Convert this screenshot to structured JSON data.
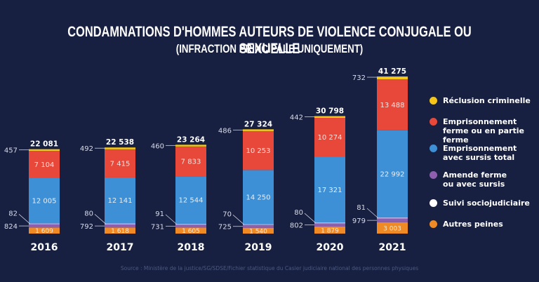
{
  "title": "CONDAMNATIONS D'HOMMES AUTEURS  DE VIOLENCE CONJUGALE OU SEXUELLE",
  "subtitle": "(INFRACTION PRINCIPALE UNIQUEMENT)",
  "source": "Source : Ministère de la justice/SG/SDSE/Fichier statistique du Casier judiciaire national des personnes physiques",
  "legend": [
    {
      "label": "Réclusion criminelle",
      "color": "#f5c518"
    },
    {
      "label": "Emprisonnement ferme ou en partie ferme",
      "color": "#e8483a"
    },
    {
      "label": "Emprisonnement avec sursis total",
      "color": "#3d8fd6"
    },
    {
      "label": "Amende ferme ou avec sursis",
      "color": "#8e5fae"
    },
    {
      "label": "Suivi sociojudiciaire",
      "color": "#ffffff"
    },
    {
      "label": "Autres peines",
      "color": "#f08a24"
    }
  ],
  "chart_data": {
    "type": "bar",
    "stacked": true,
    "title": "CONDAMNATIONS D'HOMMES AUTEURS DE VIOLENCE CONJUGALE OU SEXUELLE",
    "subtitle": "(INFRACTION PRINCIPALE UNIQUEMENT)",
    "categories": [
      "2016",
      "2017",
      "2018",
      "2019",
      "2020",
      "2021"
    ],
    "totals": [
      "22 081",
      "22 538",
      "23 264",
      "27 324",
      "30 798",
      "41 275"
    ],
    "series": [
      {
        "name": "Autres peines",
        "color": "#f08a24",
        "values": [
          1609,
          1618,
          1605,
          1540,
          1879,
          3003
        ],
        "labels": [
          "1 609",
          "1 618",
          "1 605",
          "1 540",
          "1 879",
          "3 003"
        ]
      },
      {
        "name": "Amende ferme ou avec sursis",
        "color": "#8e5fae",
        "values": [
          824,
          792,
          731,
          725,
          802,
          979
        ],
        "labels": [
          "824",
          "792",
          "731",
          "725",
          "802",
          "979"
        ]
      },
      {
        "name": "Suivi sociojudiciaire",
        "color": "#b9b3e6",
        "values": [
          82,
          80,
          91,
          70,
          80,
          81
        ],
        "labels": [
          "82",
          "80",
          "91",
          "70",
          "80",
          "81"
        ]
      },
      {
        "name": "Emprisonnement avec sursis total",
        "color": "#3d8fd6",
        "values": [
          12005,
          12141,
          12544,
          14250,
          17321,
          22992
        ],
        "labels": [
          "12 005",
          "12 141",
          "12 544",
          "14 250",
          "17 321",
          "22 992"
        ]
      },
      {
        "name": "Emprisonnement ferme ou en partie ferme",
        "color": "#e8483a",
        "values": [
          7104,
          7415,
          7833,
          10253,
          10274,
          13488
        ],
        "labels": [
          "7 104",
          "7 415",
          "7 833",
          "10 253",
          "10 274",
          "13 488"
        ]
      },
      {
        "name": "Réclusion criminelle",
        "color": "#f5c518",
        "values": [
          457,
          492,
          460,
          486,
          442,
          732
        ],
        "labels": [
          "457",
          "492",
          "460",
          "486",
          "442",
          "732"
        ]
      }
    ],
    "xlabel": "",
    "ylabel": "",
    "grid": false,
    "legend_position": "right"
  }
}
